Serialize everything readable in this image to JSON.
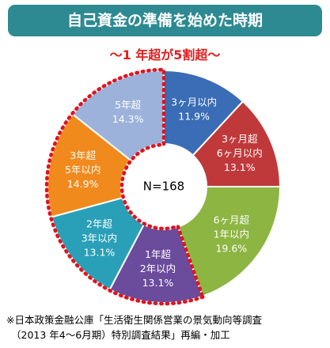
{
  "title": "自己資金の準備を始めた時期",
  "subtitle": "～1 年超が5割超～",
  "source_lines": [
    "※日本政策金融公庫「生活衛生関係営業の景気動向等調査",
    "（2013 年4～6月期）特別調査結果」再編・加工"
  ],
  "chart_data": {
    "type": "pie",
    "center_label": "N=168",
    "categories": [
      "3ヶ月以内",
      "3ヶ月超\n6ヶ月以内",
      "6ヶ月超\n1年以内",
      "1年超\n2年以内",
      "2年超\n3年以内",
      "3年超\n5年以内",
      "5年超"
    ],
    "values": [
      11.9,
      13.1,
      19.6,
      13.1,
      13.1,
      14.9,
      14.3
    ],
    "value_labels": [
      "11.9%",
      "13.1%",
      "19.6%",
      "13.1%",
      "13.1%",
      "14.9%",
      "14.3%"
    ],
    "colors": [
      "#3a6db5",
      "#c0393a",
      "#8db542",
      "#6b4b9c",
      "#2aa0b8",
      "#f08a1d",
      "#9cb2da"
    ],
    "highlight_group": [
      "1年超\n2年以内",
      "2年超\n3年以内",
      "3年超\n5年以内",
      "5年超"
    ],
    "highlight_color": "#e0141e"
  }
}
